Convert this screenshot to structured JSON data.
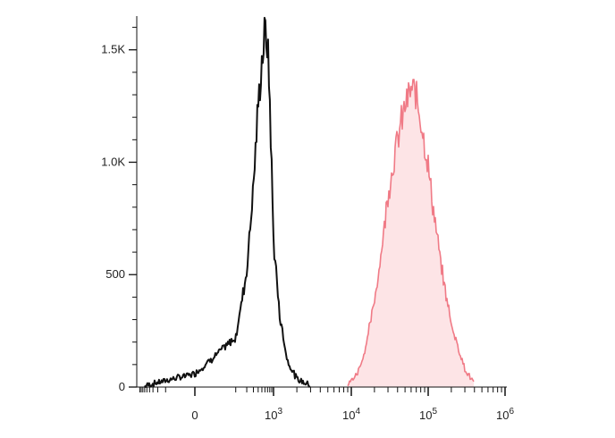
{
  "chart_data": {
    "type": "area",
    "title": "",
    "xlabel": "",
    "ylabel": "",
    "x_scale": "biexponential",
    "xlim": [
      -1000,
      1000000
    ],
    "ylim": [
      0,
      1650
    ],
    "grid": false,
    "legend": "none",
    "y_ticks": [
      {
        "value": 0,
        "label": "0"
      },
      {
        "value": 500,
        "label": "500"
      },
      {
        "value": 1000,
        "label": "1.0K"
      },
      {
        "value": 1500,
        "label": "1.5K"
      }
    ],
    "x_ticks": [
      {
        "value": 0,
        "base": "0",
        "exp": ""
      },
      {
        "value": 1000,
        "base": "10",
        "exp": "3"
      },
      {
        "value": 10000,
        "base": "10",
        "exp": "4"
      },
      {
        "value": 100000,
        "base": "10",
        "exp": "5"
      },
      {
        "value": 1000000,
        "base": "10",
        "exp": "6"
      }
    ],
    "series": [
      {
        "color": "#111111",
        "fill": "none",
        "x": [
          -600,
          -300,
          0,
          100,
          200,
          300,
          400,
          500,
          600,
          700,
          800,
          900,
          1000,
          1200,
          1500,
          2000,
          3000
        ],
        "y": [
          5,
          15,
          60,
          220,
          520,
          900,
          1250,
          1450,
          1580,
          1520,
          1280,
          950,
          650,
          320,
          120,
          35,
          8
        ]
      },
      {
        "color": "#f07a86",
        "fill": "#fde4e6",
        "x": [
          9000,
          12000,
          15000,
          20000,
          25000,
          30000,
          40000,
          50000,
          60000,
          70000,
          80000,
          100000,
          120000,
          150000,
          200000,
          300000,
          400000
        ],
        "y": [
          10,
          60,
          160,
          380,
          620,
          860,
          1100,
          1250,
          1320,
          1300,
          1200,
          980,
          760,
          520,
          280,
          80,
          15
        ]
      }
    ]
  }
}
